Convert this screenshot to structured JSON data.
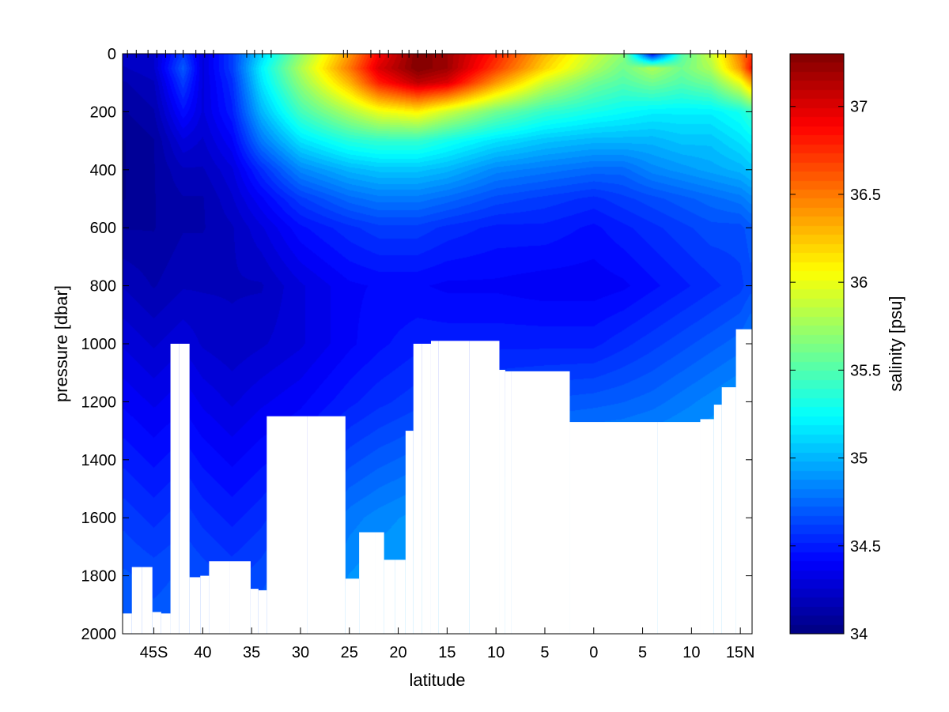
{
  "chart_data": {
    "type": "heatmap",
    "title": "",
    "xlabel": "latitude",
    "ylabel": "pressure [dbar]",
    "colorbar_label": "salinity [psu]",
    "xlim": [
      -48.2,
      16.2
    ],
    "ylim": [
      0,
      2000
    ],
    "y_reversed": true,
    "x_ticks": [
      -45,
      -40,
      -35,
      -30,
      -25,
      -20,
      -15,
      -10,
      -5,
      0,
      5,
      10,
      15
    ],
    "x_tick_labels": [
      "45S",
      "40",
      "35",
      "30",
      "25",
      "20",
      "15",
      "10",
      "5",
      "0",
      "5",
      "10",
      "15N"
    ],
    "y_ticks": [
      0,
      200,
      400,
      600,
      800,
      1000,
      1200,
      1400,
      1600,
      1800,
      2000
    ],
    "y_tick_labels": [
      "0",
      "200",
      "400",
      "600",
      "800",
      "1000",
      "1200",
      "1400",
      "1600",
      "1800",
      "2000"
    ],
    "color_range": [
      34.0,
      37.3
    ],
    "colorbar_ticks": [
      34,
      34.5,
      35,
      35.5,
      36,
      36.5,
      37
    ],
    "colorbar_tick_labels": [
      "34",
      "34.5",
      "35",
      "35.5",
      "36",
      "36.5",
      "37"
    ],
    "colormap": "jet",
    "grid": false,
    "station_latitudes": [
      -47.7,
      -46.8,
      -45.6,
      -44.7,
      -43.8,
      -42.8,
      -42.0,
      -40.7,
      -39.8,
      -38.9,
      -35.5,
      -34.7,
      -33.9,
      -33.0,
      -25.6,
      -25.2,
      -22.8,
      -21.9,
      -21.0,
      -19.6,
      -18.9,
      -18.0,
      -17.1,
      -16.2,
      -15.5,
      -10.0,
      -9.3,
      -8.8,
      -8.0,
      3.1,
      9.9,
      11.9,
      12.7,
      13.5,
      15.6
    ],
    "station_bottom_pressure": [
      1930,
      1770,
      1770,
      1925,
      1930,
      1000,
      1000,
      1805,
      1800,
      1750,
      1750,
      1845,
      1850,
      1250,
      1250,
      1810,
      1650,
      1650,
      1745,
      1745,
      1300,
      1000,
      1000,
      990,
      990,
      990,
      1090,
      1095,
      1095,
      1270,
      1270,
      1260,
      1210,
      1150,
      950
    ],
    "salinity_field": {
      "pressure_levels": [
        0,
        50,
        100,
        200,
        300,
        400,
        500,
        600,
        800,
        1000,
        1200,
        1400,
        1600,
        1800,
        2000
      ],
      "latitudes": [
        -48,
        -45,
        -42,
        -40,
        -37,
        -34,
        -30,
        -25,
        -22,
        -18,
        -15,
        -10,
        -5,
        0,
        3,
        6,
        9,
        12,
        15,
        16
      ],
      "values": [
        [
          34.25,
          34.25,
          34.6,
          34.3,
          34.6,
          35.1,
          35.7,
          36.4,
          36.9,
          37.3,
          37.2,
          36.8,
          36.3,
          35.9,
          35.7,
          34.4,
          35.5,
          35.9,
          36.5,
          36.7
        ],
        [
          34.2,
          34.25,
          34.7,
          34.3,
          34.6,
          35.2,
          35.8,
          36.5,
          37.0,
          37.3,
          37.2,
          36.7,
          36.2,
          35.8,
          35.6,
          35.8,
          35.6,
          35.8,
          36.4,
          36.8
        ],
        [
          34.15,
          34.2,
          34.6,
          34.3,
          34.55,
          35.15,
          35.7,
          36.3,
          36.8,
          37.1,
          37.0,
          36.4,
          35.9,
          35.6,
          35.5,
          35.6,
          35.5,
          35.6,
          36.0,
          36.3
        ],
        [
          34.1,
          34.15,
          34.45,
          34.3,
          34.5,
          35.0,
          35.45,
          35.8,
          36.0,
          36.1,
          35.9,
          35.6,
          35.4,
          35.3,
          35.25,
          35.2,
          35.2,
          35.2,
          35.3,
          35.4
        ],
        [
          34.05,
          34.1,
          34.3,
          34.25,
          34.4,
          34.8,
          35.15,
          35.35,
          35.4,
          35.4,
          35.3,
          35.15,
          35.05,
          35.0,
          35.0,
          35.0,
          35.05,
          35.05,
          35.15,
          35.2
        ],
        [
          34.05,
          34.1,
          34.2,
          34.2,
          34.3,
          34.55,
          34.85,
          35.0,
          35.05,
          35.05,
          35.0,
          34.85,
          34.8,
          34.75,
          34.75,
          34.85,
          34.9,
          34.95,
          35.0,
          35.05
        ],
        [
          34.05,
          34.1,
          34.15,
          34.15,
          34.25,
          34.4,
          34.6,
          34.75,
          34.8,
          34.8,
          34.75,
          34.65,
          34.6,
          34.55,
          34.6,
          34.65,
          34.7,
          34.75,
          34.8,
          34.85
        ],
        [
          34.1,
          34.1,
          34.15,
          34.15,
          34.2,
          34.3,
          34.45,
          34.55,
          34.6,
          34.6,
          34.55,
          34.5,
          34.5,
          34.45,
          34.5,
          34.55,
          34.6,
          34.65,
          34.65,
          34.7
        ],
        [
          34.2,
          34.15,
          34.2,
          34.2,
          34.2,
          34.2,
          34.3,
          34.4,
          34.42,
          34.42,
          34.4,
          34.4,
          34.38,
          34.38,
          34.4,
          34.45,
          34.5,
          34.55,
          34.6,
          34.65
        ],
        [
          34.3,
          34.25,
          34.3,
          34.25,
          34.22,
          34.25,
          34.3,
          34.4,
          34.45,
          34.5,
          34.5,
          34.5,
          34.5,
          34.5,
          34.55,
          34.6,
          34.65,
          34.7,
          34.75,
          34.8
        ],
        [
          34.4,
          34.35,
          34.4,
          34.35,
          34.3,
          34.35,
          34.4,
          34.5,
          34.55,
          34.6,
          34.6,
          34.65,
          34.68,
          34.7,
          34.72,
          34.75,
          34.8,
          34.85,
          34.9,
          34.9
        ],
        [
          34.5,
          34.45,
          34.5,
          34.45,
          34.4,
          34.45,
          34.5,
          34.65,
          34.7,
          34.75,
          34.8,
          34.85,
          34.87,
          34.9,
          34.9,
          34.92,
          34.95,
          34.95,
          34.95,
          34.95
        ],
        [
          34.6,
          34.55,
          34.6,
          34.55,
          34.5,
          34.55,
          34.65,
          34.8,
          34.85,
          34.9,
          34.92,
          34.93,
          34.95,
          34.95,
          34.95,
          34.96,
          34.97,
          34.97,
          34.97,
          34.97
        ],
        [
          34.68,
          34.65,
          34.68,
          34.65,
          34.6,
          34.65,
          34.75,
          34.88,
          34.92,
          34.95,
          34.96,
          34.97,
          34.97,
          34.97,
          34.97,
          34.97,
          34.97,
          34.97,
          34.97,
          34.97
        ],
        [
          34.72,
          34.7,
          34.72,
          34.7,
          34.68,
          34.72,
          34.8,
          34.92,
          34.95,
          34.97,
          34.97,
          34.97,
          34.97,
          34.97,
          34.97,
          34.97,
          34.97,
          34.97,
          34.97,
          34.97
        ]
      ]
    }
  }
}
